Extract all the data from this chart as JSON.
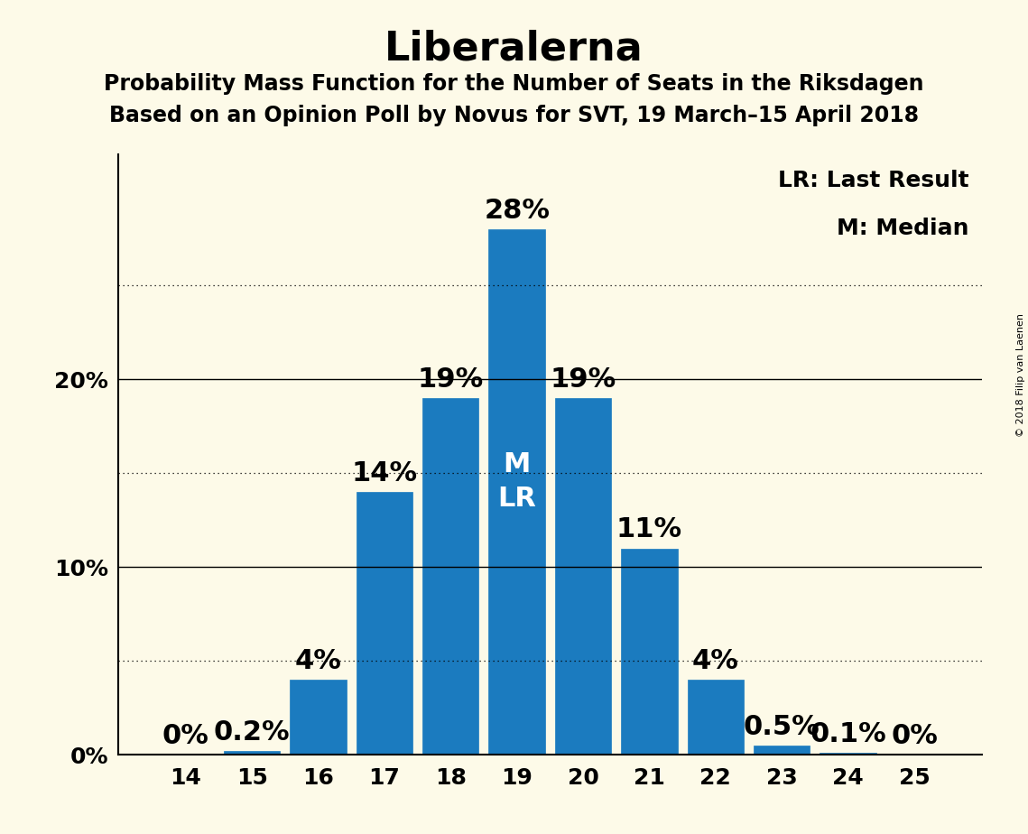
{
  "title": "Liberalerna",
  "subtitle1": "Probability Mass Function for the Number of Seats in the Riksdagen",
  "subtitle2": "Based on an Opinion Poll by Novus for SVT, 19 March–15 April 2018",
  "copyright": "© 2018 Filip van Laenen",
  "categories": [
    14,
    15,
    16,
    17,
    18,
    19,
    20,
    21,
    22,
    23,
    24,
    25
  ],
  "values": [
    0.0,
    0.2,
    4.0,
    14.0,
    19.0,
    28.0,
    19.0,
    11.0,
    4.0,
    0.5,
    0.1,
    0.0
  ],
  "labels": [
    "0%",
    "0.2%",
    "4%",
    "14%",
    "19%",
    "28%",
    "19%",
    "11%",
    "4%",
    "0.5%",
    "0.1%",
    "0%"
  ],
  "bar_color": "#1b7bbf",
  "background_color": "#fdfae8",
  "median_seat": 19,
  "last_result_seat": 19,
  "solid_yticks": [
    10,
    20
  ],
  "dotted_yticks": [
    5,
    15,
    25
  ],
  "title_fontsize": 32,
  "subtitle_fontsize": 17,
  "tick_fontsize": 18,
  "annotation_fontsize": 22,
  "inbar_fontsize": 22,
  "legend_fontsize": 18,
  "ylim": [
    0,
    32
  ]
}
